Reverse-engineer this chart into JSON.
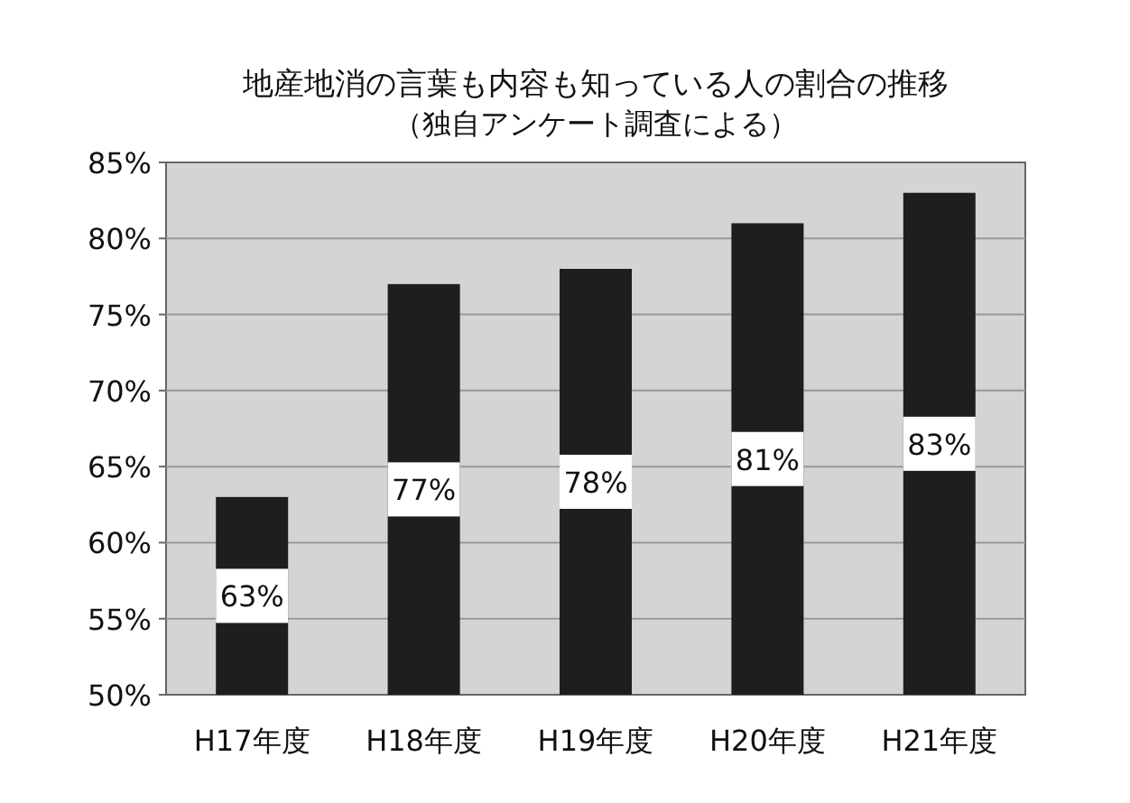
{
  "chart_data": {
    "type": "bar",
    "title": "地産地消の言葉も内容も知っている人の割合の推移",
    "subtitle": "（独自アンケート調査による）",
    "categories": [
      "H17年度",
      "H18年度",
      "H19年度",
      "H20年度",
      "H21年度"
    ],
    "values": [
      63,
      77,
      78,
      81,
      83
    ],
    "value_labels": [
      "63%",
      "77%",
      "78%",
      "81%",
      "83%"
    ],
    "color": "#1e1e1e",
    "ylim": [
      50,
      85
    ],
    "yticks": [
      {
        "value": 50,
        "label": "50%"
      },
      {
        "value": 55,
        "label": "55%"
      },
      {
        "value": 60,
        "label": "60%"
      },
      {
        "value": 65,
        "label": "65%"
      },
      {
        "value": 70,
        "label": "70%"
      },
      {
        "value": 75,
        "label": "75%"
      },
      {
        "value": 80,
        "label": "80%"
      },
      {
        "value": 85,
        "label": "85%"
      }
    ],
    "grid": "y"
  }
}
